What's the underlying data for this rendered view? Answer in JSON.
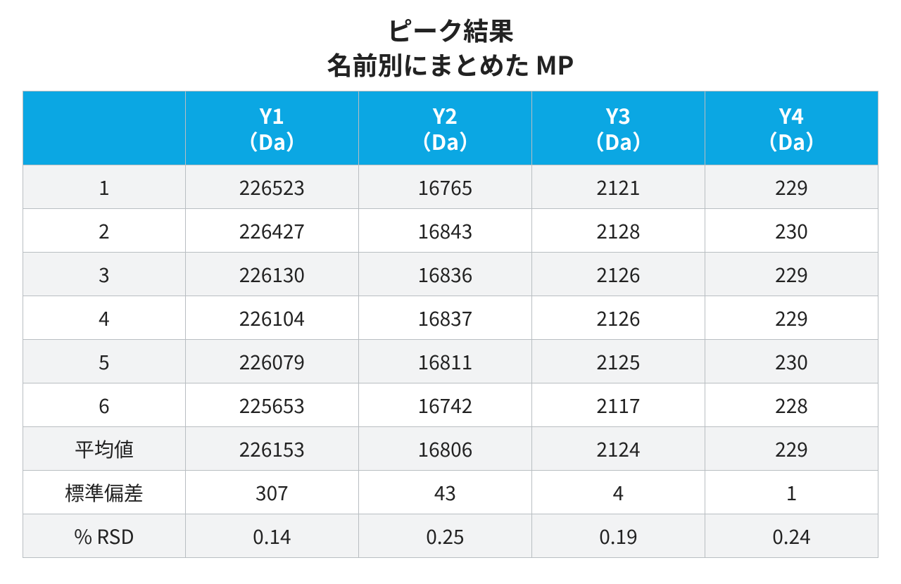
{
  "title": "ピーク結果",
  "subtitle": "名前別にまとめた MP",
  "table": {
    "type": "table",
    "header_bg": "#0ba7e3",
    "header_fg": "#ffffff",
    "border_color": "#b9bec2",
    "row_bg": "#ffffff",
    "row_alt_bg": "#f2f3f4",
    "font_family": "sans-serif",
    "header_fontsize_pt": 22,
    "body_fontsize_pt": 21,
    "columns": [
      {
        "line1": "",
        "line2": "",
        "width_pct": 19
      },
      {
        "line1": "Y1",
        "line2": "（Da）",
        "width_pct": 20.25
      },
      {
        "line1": "Y2",
        "line2": "（Da）",
        "width_pct": 20.25
      },
      {
        "line1": "Y3",
        "line2": "（Da）",
        "width_pct": 20.25
      },
      {
        "line1": "Y4",
        "line2": "（Da）",
        "width_pct": 20.25
      }
    ],
    "rows": [
      {
        "label": "1",
        "y1": "226523",
        "y2": "16765",
        "y3": "2121",
        "y4": "229"
      },
      {
        "label": "2",
        "y1": "226427",
        "y2": "16843",
        "y3": "2128",
        "y4": "230"
      },
      {
        "label": "3",
        "y1": "226130",
        "y2": "16836",
        "y3": "2126",
        "y4": "229"
      },
      {
        "label": "4",
        "y1": "226104",
        "y2": "16837",
        "y3": "2126",
        "y4": "229"
      },
      {
        "label": "5",
        "y1": "226079",
        "y2": "16811",
        "y3": "2125",
        "y4": "230"
      },
      {
        "label": "6",
        "y1": "225653",
        "y2": "16742",
        "y3": "2117",
        "y4": "228"
      },
      {
        "label": "平均値",
        "y1": "226153",
        "y2": "16806",
        "y3": "2124",
        "y4": "229"
      },
      {
        "label": "標準偏差",
        "y1": "307",
        "y2": "43",
        "y3": "4",
        "y4": "1"
      },
      {
        "label": "% RSD",
        "y1": "0.14",
        "y2": "0.25",
        "y3": "0.19",
        "y4": "0.24"
      }
    ]
  }
}
